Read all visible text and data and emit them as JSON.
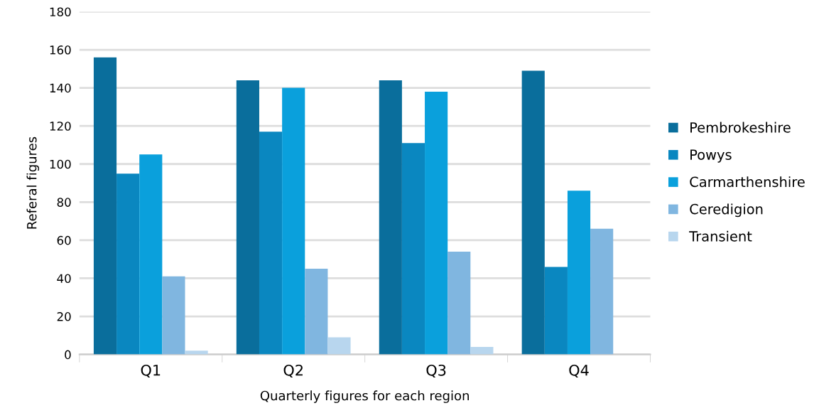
{
  "chart_data": {
    "type": "bar",
    "xlabel": "Quarterly figures for each region",
    "ylabel": "Referal figures",
    "categories": [
      "Q1",
      "Q2",
      "Q3",
      "Q4"
    ],
    "series": [
      {
        "name": "Pembrokeshire",
        "color": "#0a6e9c",
        "values": [
          156,
          144,
          144,
          149
        ]
      },
      {
        "name": "Powys",
        "color": "#0a87c0",
        "values": [
          95,
          117,
          111,
          46
        ]
      },
      {
        "name": "Carmarthenshire",
        "color": "#0aa0dc",
        "values": [
          105,
          140,
          138,
          86
        ]
      },
      {
        "name": "Ceredigion",
        "color": "#80b6e0",
        "values": [
          41,
          45,
          54,
          66
        ]
      },
      {
        "name": "Transient",
        "color": "#b8d6ee",
        "values": [
          2,
          9,
          4,
          0
        ]
      }
    ],
    "ylim": [
      0,
      180
    ],
    "yticks": [
      0,
      20,
      40,
      60,
      80,
      100,
      120,
      140,
      160,
      180
    ],
    "grid": "y",
    "legend": "right"
  }
}
